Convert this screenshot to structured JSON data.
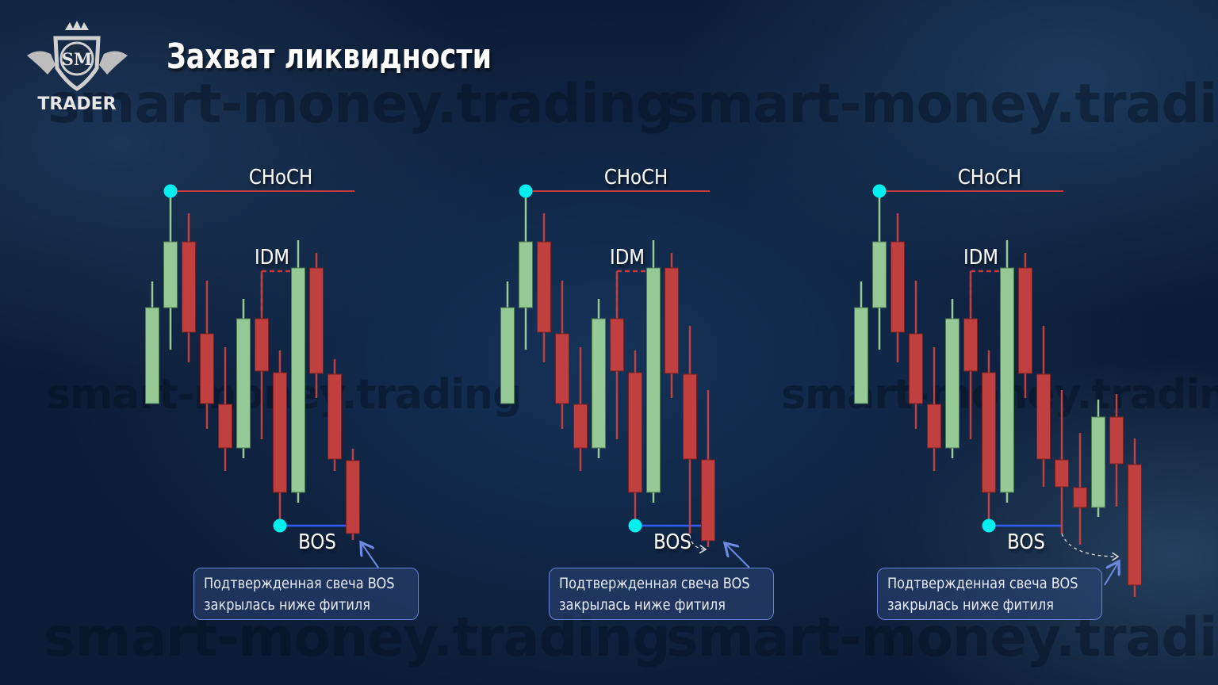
{
  "title": "Захват ликвидности",
  "logo": {
    "monogram": "SM",
    "text": "TRADER"
  },
  "watermark": "smart-money.trading",
  "colors": {
    "bull": "#97c996",
    "bear": "#c03f3f",
    "swing_dot": "#00f0f0",
    "choch_line": "#c0393d",
    "bos_line": "#2f5cff",
    "callout_border": "#6a84d6"
  },
  "panels": [
    {
      "labels": {
        "choch": "CHoCH",
        "idm": "IDM",
        "bos": "BOS"
      },
      "callout": [
        "Подтвержденная свеча BOS",
        "закрылась ниже фитиля"
      ],
      "levels": {
        "choch": 759,
        "idm": 658,
        "bos": 337
      },
      "candles": [
        [
          491,
          645,
          491,
          612
        ],
        [
          612,
          759,
          559,
          695
        ],
        [
          695,
          731,
          543,
          581
        ],
        [
          579,
          646,
          459,
          491
        ],
        [
          490,
          562,
          406,
          435
        ],
        [
          435,
          623,
          422,
          598
        ],
        [
          598,
          658,
          446,
          532
        ],
        [
          530,
          558,
          337,
          379
        ],
        [
          379,
          697,
          366,
          662
        ],
        [
          662,
          681,
          498,
          529
        ],
        [
          528,
          547,
          406,
          421
        ],
        [
          419,
          434,
          319,
          327
        ]
      ]
    },
    {
      "labels": {
        "choch": "CHoCH",
        "idm": "IDM",
        "bos": "BOS"
      },
      "callout": [
        "Подтвержденная свеча BOS",
        "закрылась ниже фитиля"
      ],
      "levels": {
        "choch": 759,
        "idm": 658,
        "bos": 337
      },
      "candles": [
        [
          491,
          645,
          491,
          612
        ],
        [
          612,
          759,
          559,
          695
        ],
        [
          695,
          731,
          543,
          581
        ],
        [
          579,
          646,
          459,
          491
        ],
        [
          490,
          562,
          406,
          435
        ],
        [
          435,
          623,
          422,
          598
        ],
        [
          598,
          658,
          446,
          532
        ],
        [
          530,
          558,
          337,
          379
        ],
        [
          379,
          697,
          366,
          662
        ],
        [
          662,
          681,
          498,
          529
        ],
        [
          528,
          589,
          327,
          421
        ],
        [
          420,
          508,
          310,
          318
        ]
      ]
    },
    {
      "labels": {
        "choch": "CHoCH",
        "idm": "IDM",
        "bos": "BOS"
      },
      "callout": [
        "Подтвержденная свеча BOS",
        "закрылась ниже фитиля"
      ],
      "levels": {
        "choch": 759,
        "idm": 658,
        "bos": 337
      },
      "candles": [
        [
          491,
          645,
          491,
          612
        ],
        [
          612,
          759,
          559,
          695
        ],
        [
          695,
          731,
          543,
          581
        ],
        [
          579,
          646,
          459,
          491
        ],
        [
          490,
          562,
          406,
          435
        ],
        [
          435,
          623,
          422,
          598
        ],
        [
          598,
          658,
          446,
          532
        ],
        [
          530,
          558,
          337,
          379
        ],
        [
          379,
          697,
          366,
          662
        ],
        [
          662,
          681,
          498,
          529
        ],
        [
          528,
          589,
          386,
          421
        ],
        [
          420,
          508,
          327,
          386
        ],
        [
          385,
          454,
          313,
          360
        ],
        [
          360,
          496,
          348,
          474
        ],
        [
          474,
          503,
          361,
          415
        ],
        [
          414,
          447,
          247,
          262
        ]
      ]
    }
  ]
}
